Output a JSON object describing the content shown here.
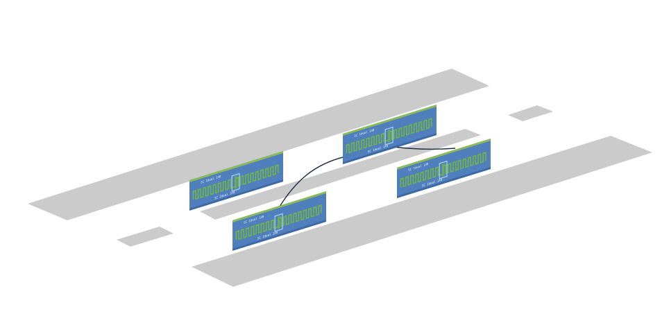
{
  "colors": {
    "background": "#ffffff",
    "slab": "#cbcbcb",
    "board": "#4f7fbd",
    "board_dark": "#3d6aa6",
    "board_edge": "#8bbb57",
    "serpentine": "#6fb04f",
    "highlight": "#9ecbe8",
    "text": "#e6eef7",
    "wire": "#1f2a44"
  },
  "chips": [
    {
      "name": "chip-left",
      "label_top": "SC Ideal 140",
      "label_bottom": "SC Ideal 140"
    },
    {
      "name": "chip-bottom-left",
      "label_top": "SC Ideal 140",
      "label_bottom": "SC Ideal 140"
    },
    {
      "name": "chip-center-top",
      "label_top": "SC Ideal 140",
      "label_bottom": "SC Ideal 140"
    },
    {
      "name": "chip-right",
      "label_top": "SC Ideal 140",
      "label_bottom": "SC Ideal 140"
    }
  ]
}
